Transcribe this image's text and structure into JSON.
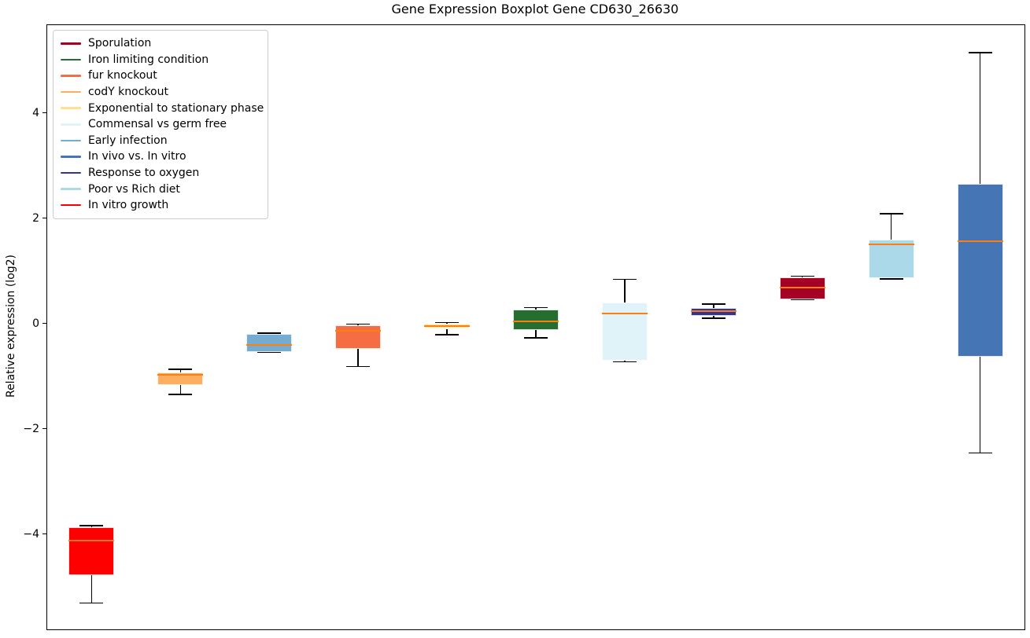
{
  "chart_data": {
    "type": "boxplot",
    "title": "Gene Expression Boxplot Gene CD630_26630",
    "ylabel": "Relative expression (log2)",
    "xlabel": "",
    "ylim": [
      -5.81,
      5.67
    ],
    "grid": false,
    "legend_position": "upper left",
    "median_color": "#ff7f0e",
    "whisker_color": "#000000",
    "yticks": [
      {
        "value": 4,
        "label": "4"
      },
      {
        "value": 2,
        "label": "2"
      },
      {
        "value": 0,
        "label": "0"
      },
      {
        "value": -2,
        "label": "−2"
      },
      {
        "value": -4,
        "label": "−4"
      }
    ],
    "boxes": [
      {
        "label": "In vitro growth",
        "color": "#ff0000",
        "whisker_low": -5.31,
        "q1": -4.78,
        "median": -4.12,
        "q3": -3.87,
        "whisker_high": -3.84
      },
      {
        "label": "codY knockout",
        "color": "#fdae61",
        "whisker_low": -1.35,
        "q1": -1.17,
        "median": -0.97,
        "q3": -0.93,
        "whisker_high": -0.87
      },
      {
        "label": "Early infection",
        "color": "#74add1",
        "whisker_low": -0.55,
        "q1": -0.54,
        "median": -0.4,
        "q3": -0.19,
        "whisker_high": -0.18
      },
      {
        "label": "fur knockout",
        "color": "#f46d43",
        "whisker_low": -0.82,
        "q1": -0.48,
        "median": -0.13,
        "q3": -0.04,
        "whisker_high": -0.01
      },
      {
        "label": "Exponential to stationary phase",
        "color": "#fee090",
        "whisker_low": -0.21,
        "q1": -0.1,
        "median": -0.05,
        "q3": 0.0,
        "whisker_high": 0.02
      },
      {
        "label": "Iron limiting condition",
        "color": "#256d30",
        "whisker_low": -0.27,
        "q1": -0.12,
        "median": 0.04,
        "q3": 0.27,
        "whisker_high": 0.3
      },
      {
        "label": "Commensal vs germ free",
        "color": "#e0f3f8",
        "whisker_low": -0.73,
        "q1": -0.71,
        "median": 0.19,
        "q3": 0.4,
        "whisker_high": 0.84
      },
      {
        "label": "Response to oxygen",
        "color": "#313695",
        "whisker_low": 0.1,
        "q1": 0.15,
        "median": 0.23,
        "q3": 0.3,
        "whisker_high": 0.37
      },
      {
        "label": "Sporulation",
        "color": "#a50026",
        "whisker_low": 0.45,
        "q1": 0.46,
        "median": 0.69,
        "q3": 0.88,
        "whisker_high": 0.9
      },
      {
        "label": "Poor vs Rich diet",
        "color": "#abd9e9",
        "whisker_low": 0.85,
        "q1": 0.86,
        "median": 1.51,
        "q3": 1.6,
        "whisker_high": 2.09
      },
      {
        "label": "In vivo vs. In vitro",
        "color": "#4575b4",
        "whisker_low": -2.46,
        "q1": -0.63,
        "median": 1.56,
        "q3": 2.65,
        "whisker_high": 5.15
      }
    ],
    "legend": [
      {
        "label": "Sporulation",
        "color": "#a50026"
      },
      {
        "label": "Iron limiting condition",
        "color": "#256d30"
      },
      {
        "label": "fur knockout",
        "color": "#f46d43"
      },
      {
        "label": "codY knockout",
        "color": "#fdae61"
      },
      {
        "label": "Exponential to stationary phase",
        "color": "#fee090"
      },
      {
        "label": "Commensal vs germ free",
        "color": "#e0f3f8"
      },
      {
        "label": "Early infection",
        "color": "#74add1"
      },
      {
        "label": "In vivo vs. In vitro",
        "color": "#4575b4"
      },
      {
        "label": "Response to oxygen",
        "color": "#313695"
      },
      {
        "label": "Poor vs Rich diet",
        "color": "#abd9e9"
      },
      {
        "label": "In vitro growth",
        "color": "#ff0000"
      }
    ]
  }
}
